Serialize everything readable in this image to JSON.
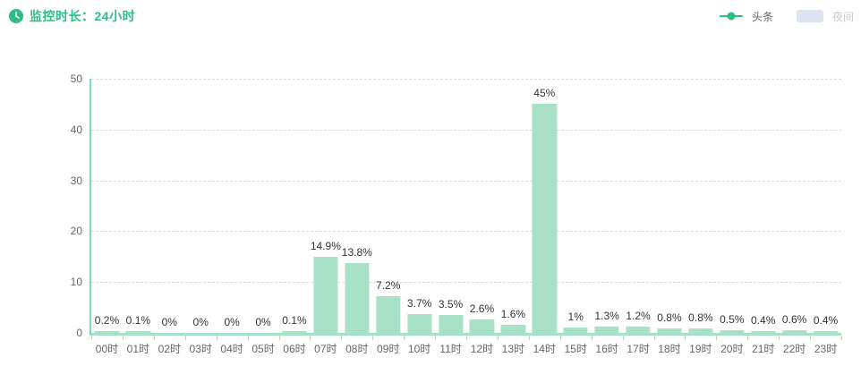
{
  "header": {
    "title": "监控时长：24小时"
  },
  "colors": {
    "accent_green": "#2dbd85",
    "bar_fill": "#a8e1c6",
    "axis_line_y": "#7ed8ad",
    "axis_line_x": "#a3e2c6",
    "night_swatch": "#dde4ef",
    "grid_line": "#dddddd",
    "value_label_text": "#333333",
    "axis_text": "#666666",
    "legend_text": "#666666",
    "legend_text_disabled": "#c7cbd1"
  },
  "chart_data": {
    "type": "bar",
    "title": "监控时长：24小时",
    "categories": [
      "00时",
      "01时",
      "02时",
      "03时",
      "04时",
      "05时",
      "06时",
      "07时",
      "08时",
      "09时",
      "10时",
      "11时",
      "12时",
      "13时",
      "14时",
      "15时",
      "16时",
      "17时",
      "18时",
      "19时",
      "20时",
      "21时",
      "22时",
      "23时"
    ],
    "series": [
      {
        "name": "头条",
        "type": "bar",
        "visible": true,
        "color": "#a8e1c6",
        "values": [
          0.2,
          0.1,
          0,
          0,
          0,
          0,
          0.1,
          14.9,
          13.8,
          7.2,
          3.7,
          3.5,
          2.6,
          1.6,
          45,
          1,
          1.3,
          1.2,
          0.8,
          0.8,
          0.5,
          0.4,
          0.6,
          0.4
        ],
        "labels": [
          "0.2%",
          "0.1%",
          "0%",
          "0%",
          "0%",
          "0%",
          "0.1%",
          "14.9%",
          "13.8%",
          "7.2%",
          "3.7%",
          "3.5%",
          "2.6%",
          "1.6%",
          "45%",
          "1%",
          "1.3%",
          "1.2%",
          "0.8%",
          "0.8%",
          "0.5%",
          "0.4%",
          "0.6%",
          "0.4%"
        ]
      },
      {
        "name": "夜间",
        "type": "bar",
        "visible": false,
        "color": "#dde4ef"
      }
    ],
    "xlabel": "",
    "ylabel": "",
    "ylim": [
      0,
      50
    ],
    "yticks": [
      0,
      10,
      20,
      30,
      40,
      50
    ],
    "grid": "horizontal-dashed",
    "legend_position": "top-right"
  }
}
